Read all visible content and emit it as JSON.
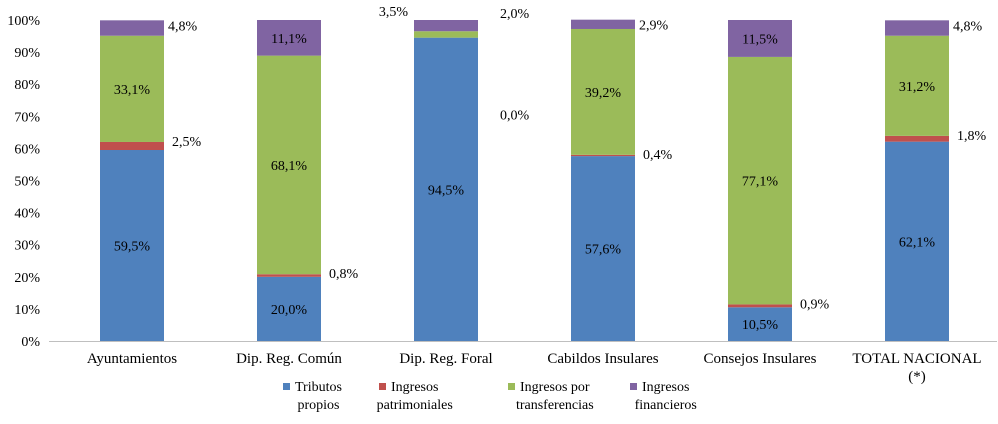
{
  "chart_data": {
    "type": "bar",
    "stacked": true,
    "categories": [
      [
        "Ayuntamientos"
      ],
      [
        "Dip. Reg. Común"
      ],
      [
        "Dip. Reg. Foral"
      ],
      [
        "Cabildos Insulares"
      ],
      [
        "Consejos Insulares"
      ],
      [
        "TOTAL NACIONAL",
        "(*)"
      ]
    ],
    "series": [
      {
        "name": [
          "Tributos",
          "propios"
        ],
        "color": "#4F81BD",
        "values": [
          59.5,
          20.0,
          94.5,
          57.6,
          10.5,
          62.1
        ],
        "labels": [
          "59,5%",
          "20,0%",
          "94,5%",
          "57,6%",
          "10,5%",
          "62,1%"
        ]
      },
      {
        "name": [
          "Ingresos",
          "patrimoniales"
        ],
        "color": "#C0504D",
        "values": [
          2.5,
          0.8,
          0.0,
          0.4,
          0.9,
          1.8
        ],
        "labels": [
          "2,5%",
          "0,8%",
          "0,0%",
          "0,4%",
          "0,9%",
          "1,8%"
        ]
      },
      {
        "name": [
          "Ingresos por",
          "transferencias"
        ],
        "color": "#9BBB59",
        "values": [
          33.1,
          68.1,
          2.0,
          39.2,
          77.1,
          31.2
        ],
        "labels": [
          "33,1%",
          "68,1%",
          "2,0%",
          "39,2%",
          "77,1%",
          "31,2%"
        ]
      },
      {
        "name": [
          "Ingresos",
          "financieros"
        ],
        "color": "#8064A2",
        "values": [
          4.8,
          11.1,
          3.5,
          2.9,
          11.5,
          4.8
        ],
        "labels": [
          "4,8%",
          "11,1%",
          "3,5%",
          "2,9%",
          "11,5%",
          "4,8%"
        ]
      }
    ],
    "ylim": [
      0,
      100
    ],
    "yticks": [
      "0%",
      "10%",
      "20%",
      "30%",
      "40%",
      "50%",
      "60%",
      "70%",
      "80%",
      "90%",
      "100%"
    ],
    "grid": false,
    "legend": "bottom"
  }
}
